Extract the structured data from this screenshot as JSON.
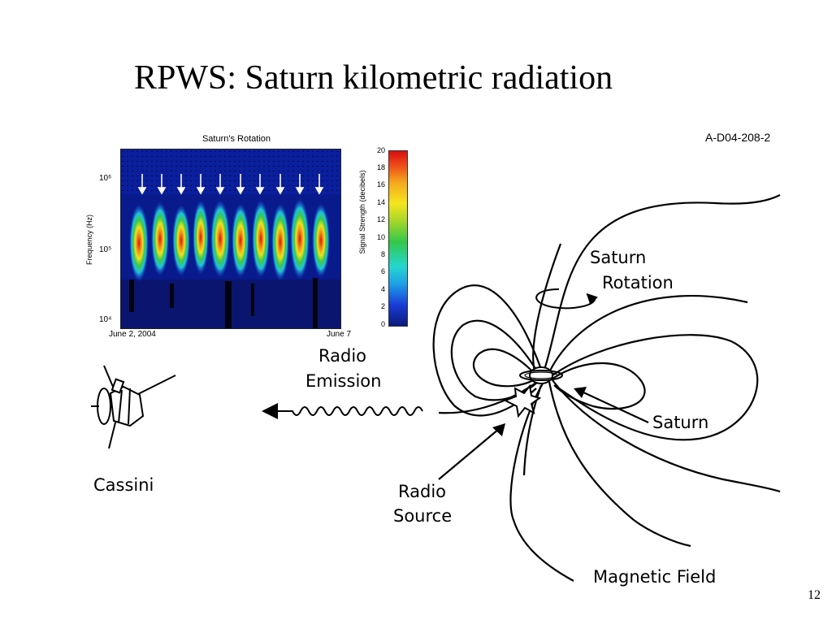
{
  "slide": {
    "title": "RPWS: Saturn kilometric radiation",
    "page_number": "12",
    "figure_id": "A-D04-208-2"
  },
  "spectrogram": {
    "title": "Saturn's Rotation",
    "y_axis_label": "Frequency (Hz)",
    "y_ticks": [
      "10⁶",
      "10⁵",
      "10⁴"
    ],
    "x_start_label": "June 2, 2004",
    "x_end_label": "June 7",
    "rotation_markers": 10
  },
  "colorbar": {
    "label": "Signal Strength (decibels)",
    "ticks": [
      "20",
      "18",
      "16",
      "14",
      "12",
      "10",
      "8",
      "6",
      "4",
      "2",
      "0"
    ]
  },
  "labels": {
    "saturn_rotation_line1": "Saturn",
    "saturn_rotation_line2": "Rotation",
    "radio_emission_line1": "Radio",
    "radio_emission_line2": "Emission",
    "saturn": "Saturn",
    "cassini": "Cassini",
    "radio_source_line1": "Radio",
    "radio_source_line2": "Source",
    "magnetic_field": "Magnetic Field"
  }
}
